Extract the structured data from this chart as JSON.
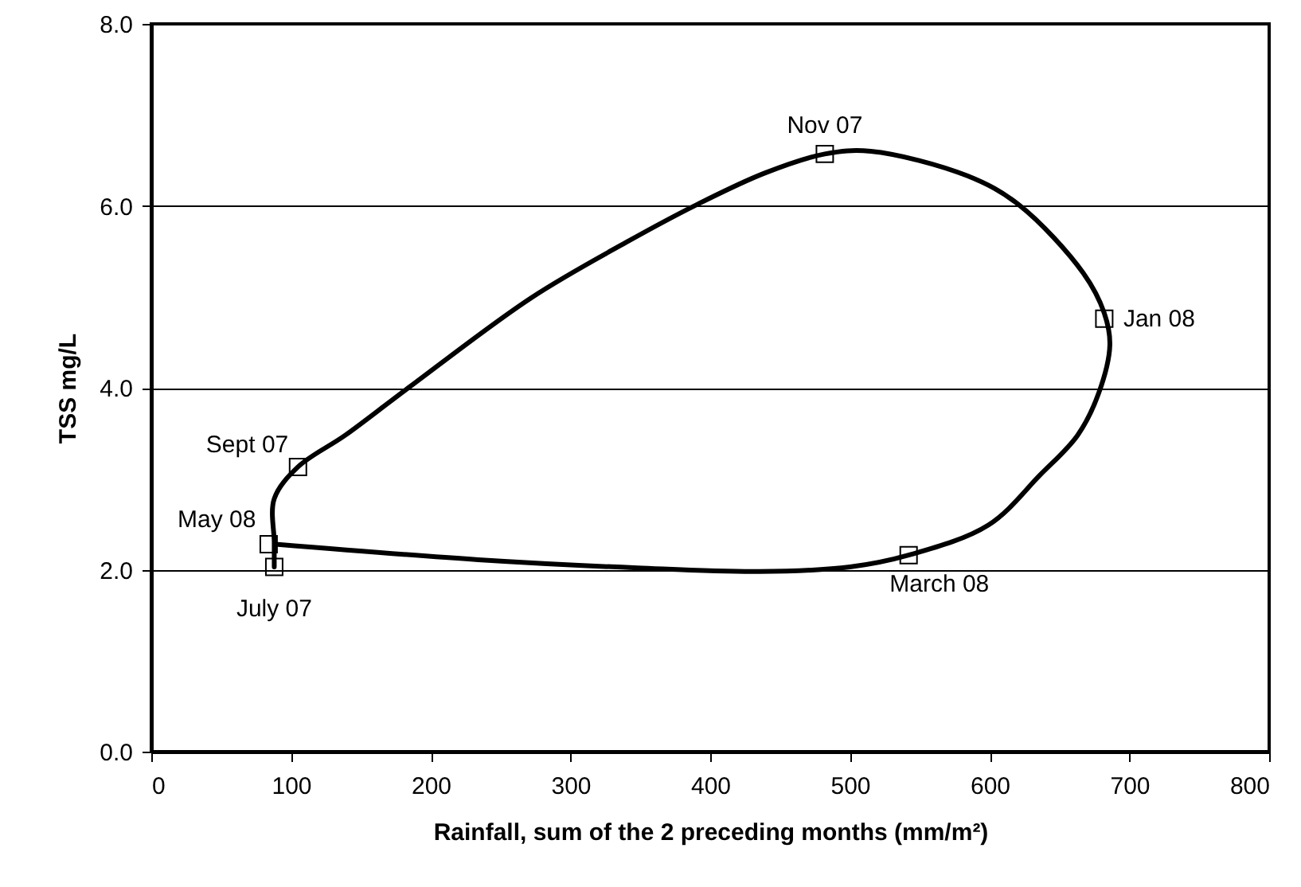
{
  "chart_data": {
    "type": "scatter",
    "xlabel": "Rainfall, sum of the 2 preceding months (mm/m²)",
    "ylabel": "TSS mg/L",
    "xlim": [
      0,
      800
    ],
    "xticks": [
      0,
      100,
      200,
      300,
      400,
      500,
      600,
      700,
      800
    ],
    "ylim": [
      0,
      8
    ],
    "yticks": [
      {
        "value": 0,
        "label": "0.0"
      },
      {
        "value": 2,
        "label": "2.0"
      },
      {
        "value": 4,
        "label": "4.0"
      },
      {
        "value": 6,
        "label": "6.0"
      },
      {
        "value": 8,
        "label": "8.0"
      }
    ],
    "grid": "y",
    "series": [
      {
        "type": "line",
        "color": "#000000",
        "line_style": "solid",
        "marker": "none",
        "x": [
          88,
          88,
          88,
          105,
          139,
          184,
          272,
          340,
          390,
          439,
          482,
          515,
          584,
          621,
          667,
          682,
          686,
          678,
          663,
          636,
          599,
          542,
          500,
          435,
          348,
          234,
          89
        ],
        "values": [
          2.03,
          2.3,
          2.78,
          3.13,
          3.48,
          4.0,
          4.99,
          5.6,
          6.01,
          6.36,
          6.57,
          6.6,
          6.33,
          6.01,
          5.26,
          4.82,
          4.47,
          3.94,
          3.48,
          3.04,
          2.49,
          2.16,
          2.03,
          1.98,
          2.02,
          2.11,
          2.28
        ]
      },
      {
        "color": "#000000",
        "marker": "square",
        "x": [
          88,
          105,
          482,
          682,
          542,
          84
        ],
        "values": [
          2.03,
          3.13,
          6.57,
          4.76,
          2.16,
          2.28
        ]
      }
    ],
    "annotations": [
      {
        "text": "July 07",
        "x": 88,
        "y": 2.03
      },
      {
        "text": "Sept 07",
        "x": 105,
        "y": 3.13
      },
      {
        "text": "Nov 07",
        "x": 482,
        "y": 6.57
      },
      {
        "text": "Jan 08",
        "x": 682,
        "y": 4.76
      },
      {
        "text": "March 08",
        "x": 542,
        "y": 2.16
      },
      {
        "text": "May 08",
        "x": 84,
        "y": 2.28
      }
    ]
  }
}
